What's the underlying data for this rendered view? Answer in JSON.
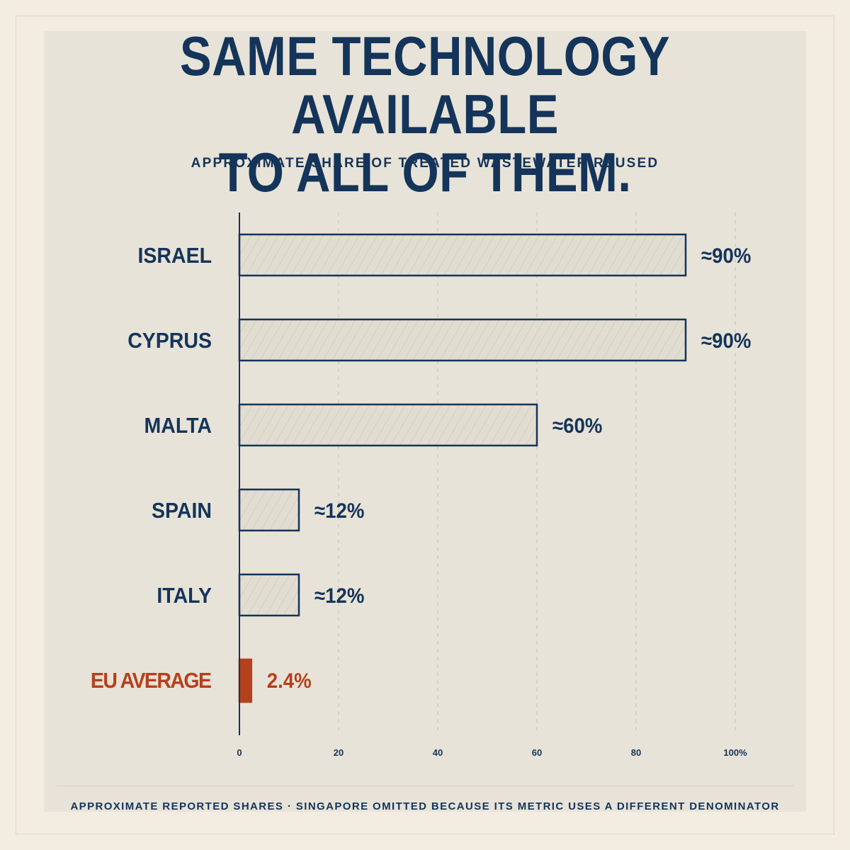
{
  "header": {
    "title_line1": "SAME TECHNOLOGY AVAILABLE",
    "title_line2": "TO ALL OF THEM.",
    "subtitle": "APPROXIMATE SHARE OF TREATED WASTEWATER REUSED"
  },
  "footer": {
    "note": "APPROXIMATE REPORTED SHARES · SINGAPORE OMITTED BECAUSE ITS METRIC USES A DIFFERENT DENOMINATOR"
  },
  "colors": {
    "navy": "#14345a",
    "highlight": "#b5401c",
    "bar_fill": "#e2ddd1",
    "hatch": "#cfc7b8",
    "grid": "#cdc3b2"
  },
  "chart_data": {
    "type": "bar",
    "orientation": "horizontal",
    "title": "SAME TECHNOLOGY AVAILABLE TO ALL OF THEM.",
    "subtitle": "APPROXIMATE SHARE OF TREATED WASTEWATER REUSED",
    "categories": [
      "ISRAEL",
      "CYPRUS",
      "MALTA",
      "SPAIN",
      "ITALY",
      "EU AVERAGE"
    ],
    "values": [
      90,
      90,
      60,
      12,
      12,
      2.4
    ],
    "value_labels": [
      "≈90%",
      "≈90%",
      "≈60%",
      "≈12%",
      "≈12%",
      "2.4%"
    ],
    "highlighted": [
      false,
      false,
      false,
      false,
      false,
      true
    ],
    "xlim": [
      0,
      100
    ],
    "xticks": [
      0,
      20,
      40,
      60,
      80,
      100
    ],
    "xtick_labels": [
      "0",
      "20",
      "40",
      "60",
      "80",
      "100%"
    ],
    "grid": true,
    "legend": "none"
  }
}
